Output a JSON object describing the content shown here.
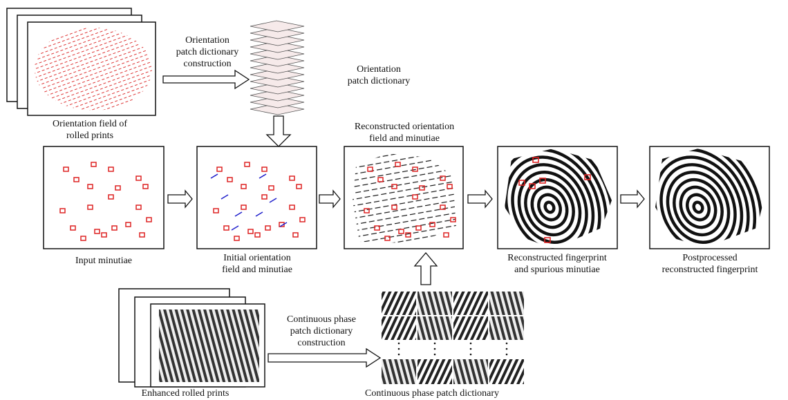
{
  "labels": {
    "orientation_field": {
      "lines": [
        "Orientation field of",
        "rolled prints"
      ]
    },
    "orientation_construction": {
      "lines": [
        "Orientation",
        "patch dictionary",
        "construction"
      ]
    },
    "orientation_dictionary": {
      "lines": [
        "Orientation",
        "patch dictionary"
      ]
    },
    "input_minutiae": {
      "lines": [
        "Input minutiae"
      ]
    },
    "initial_orientation": {
      "lines": [
        "Initial orientation",
        "field and minutiae"
      ]
    },
    "reconstructed_orientation": {
      "lines": [
        "Reconstructed orientation",
        "field and minutiae"
      ]
    },
    "reconstructed_fingerprint": {
      "lines": [
        "Reconstructed fingerprint",
        "and spurious minutiae"
      ]
    },
    "postprocessed": {
      "lines": [
        "Postprocessed",
        "reconstructed fingerprint"
      ]
    },
    "enhanced_prints": {
      "lines": [
        "Enhanced rolled prints"
      ]
    },
    "phase_construction": {
      "lines": [
        "Continuous phase",
        "patch dictionary",
        "construction"
      ]
    },
    "phase_dictionary": {
      "lines": [
        "Continuous phase patch dictionary"
      ]
    }
  }
}
